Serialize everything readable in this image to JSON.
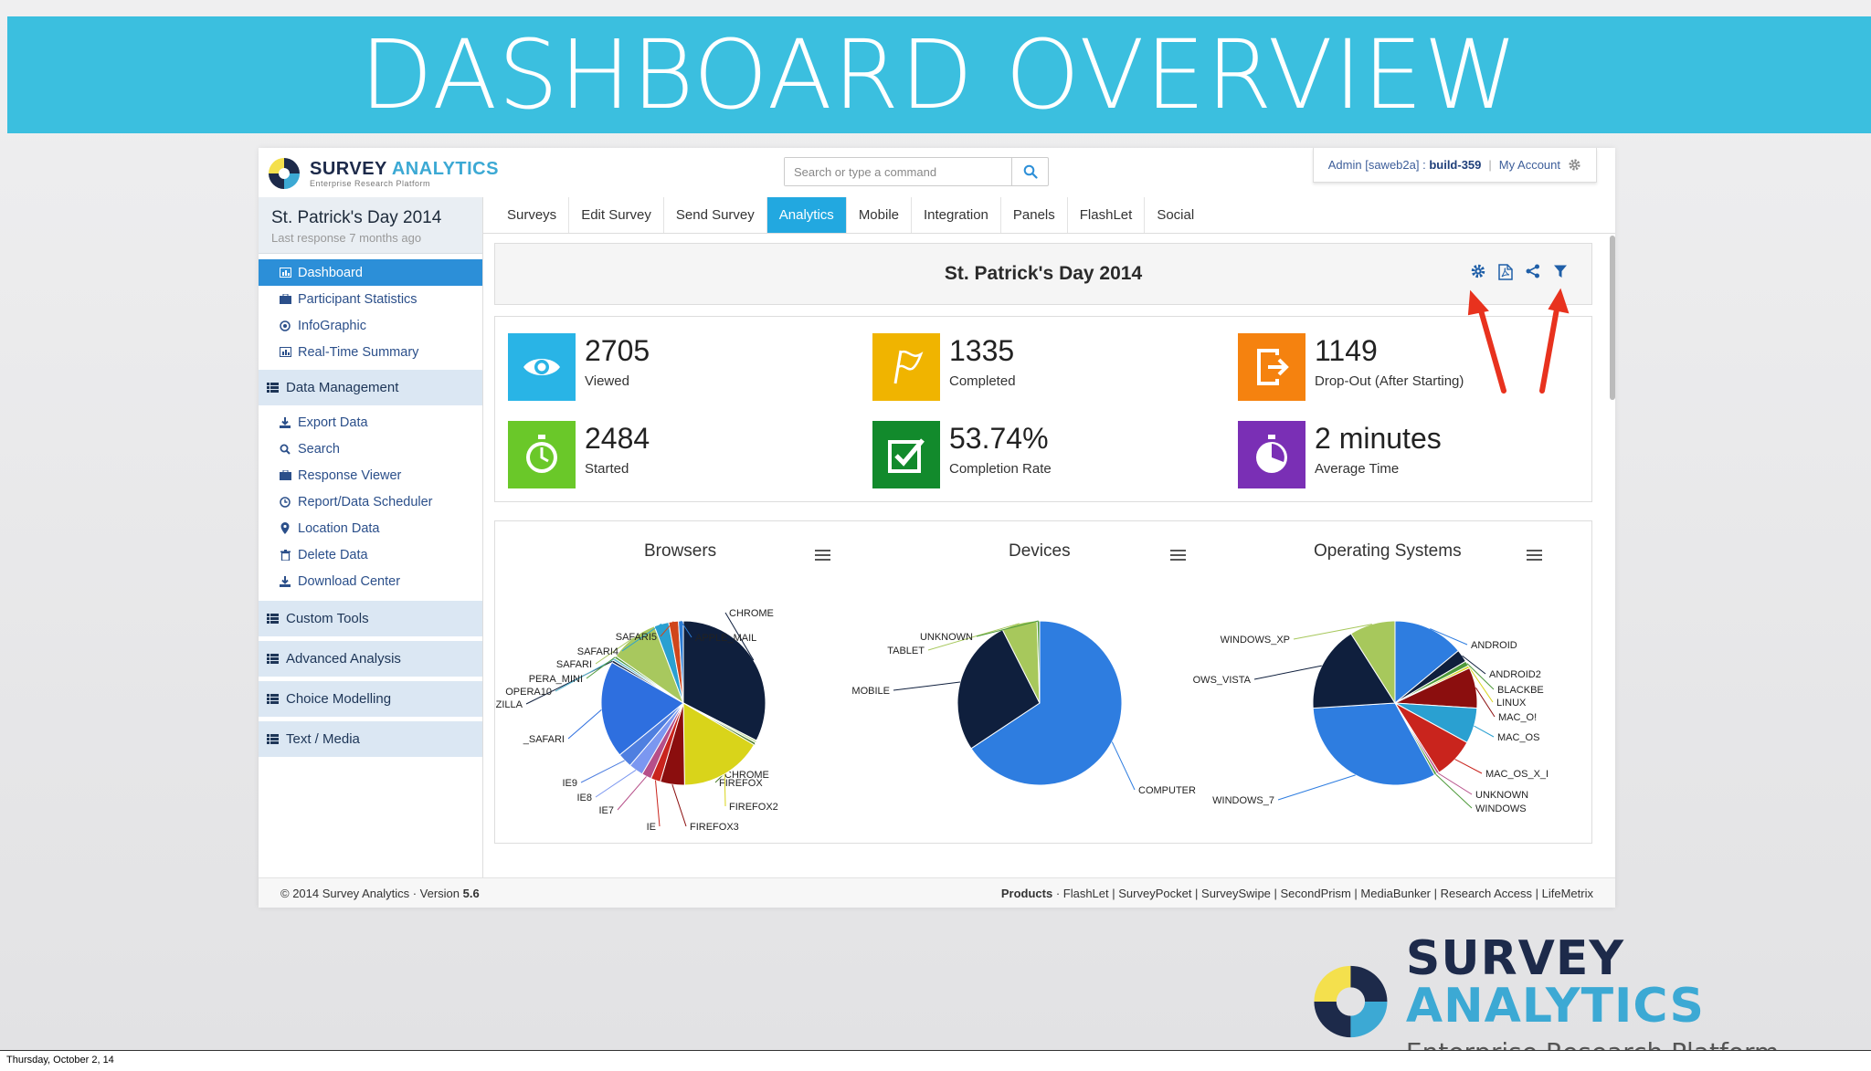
{
  "slide": {
    "title": "DASHBOARD OVERVIEW",
    "date": "Thursday, October 2, 14",
    "brand_name_1": "SURVEY",
    "brand_name_2": "ANALYTICS",
    "brand_sub": "Enterprise Research Platform"
  },
  "app": {
    "logo_name_1": "SURVEY",
    "logo_name_2": "ANALYTICS",
    "logo_sub": "Enterprise Research Platform",
    "search_placeholder": "Search or type a command",
    "account": {
      "admin_label": "Admin [saweb2a] :",
      "build": "build-359",
      "my_account": "My Account"
    }
  },
  "sidebar": {
    "project_title": "St. Patrick's Day 2014",
    "project_sub": "Last response 7 months ago",
    "items": [
      {
        "label": "Dashboard",
        "icon": "chart-icon",
        "active": true
      },
      {
        "label": "Participant Statistics",
        "icon": "briefcase-icon"
      },
      {
        "label": "InfoGraphic",
        "icon": "target-icon"
      },
      {
        "label": "Real-Time Summary",
        "icon": "chart-icon"
      }
    ],
    "data_management": "Data Management",
    "dm_items": [
      {
        "label": "Export Data",
        "icon": "download-icon"
      },
      {
        "label": "Search",
        "icon": "search-icon"
      },
      {
        "label": "Response Viewer",
        "icon": "briefcase-icon"
      },
      {
        "label": "Report/Data Scheduler",
        "icon": "clock-icon"
      },
      {
        "label": "Location Data",
        "icon": "pin-icon"
      },
      {
        "label": "Delete Data",
        "icon": "trash-icon"
      },
      {
        "label": "Download Center",
        "icon": "download-icon"
      }
    ],
    "sections": [
      "Custom Tools",
      "Advanced Analysis",
      "Choice Modelling",
      "Text / Media"
    ]
  },
  "tabs": [
    "Surveys",
    "Edit Survey",
    "Send Survey",
    "Analytics",
    "Mobile",
    "Integration",
    "Panels",
    "FlashLet",
    "Social"
  ],
  "active_tab": "Analytics",
  "panel": {
    "title": "St. Patrick's Day 2014"
  },
  "stats": [
    {
      "value": "2705",
      "label": "Viewed",
      "color": "#29b4e6",
      "icon": "eye-icon"
    },
    {
      "value": "1335",
      "label": "Completed",
      "color": "#f0b400",
      "icon": "flag-icon"
    },
    {
      "value": "1149",
      "label": "Drop-Out (After Starting)",
      "color": "#f5820f",
      "icon": "exit-icon"
    },
    {
      "value": "2484",
      "label": "Started",
      "color": "#6ac829",
      "icon": "stopwatch-icon"
    },
    {
      "value": "53.74%",
      "label": "Completion Rate",
      "color": "#128a2c",
      "icon": "checkbox-icon"
    },
    {
      "value": "2 minutes",
      "label": "Average Time",
      "color": "#7a2fb5",
      "icon": "timer-icon"
    }
  ],
  "chart_data": [
    {
      "type": "pie",
      "title": "Browsers",
      "labels": [
        "CHROME",
        "CHROME",
        "FIREFOX",
        "FIREFOX2",
        "FIREFOX3",
        "IE",
        "IE7",
        "IE8",
        "IE9",
        "_SAFARI",
        "MOZILLA",
        "OPERA10",
        "PERA_MINI",
        "SAFARI",
        "SAFARI4",
        "SAFARI5",
        "APPLE_MAIL"
      ],
      "values": [
        34,
        0.5,
        0.5,
        17,
        5,
        2,
        2,
        3,
        3,
        20,
        0.5,
        0.5,
        0.5,
        10,
        3,
        2,
        1
      ]
    },
    {
      "type": "pie",
      "title": "Devices",
      "labels": [
        "COMPUTER",
        "MOBILE",
        "TABLET",
        "UNKNOWN"
      ],
      "values": [
        66,
        27,
        7,
        0.5
      ]
    },
    {
      "type": "pie",
      "title": "Operating Systems",
      "labels": [
        "ANDROID",
        "ANDROID2",
        "BLACKBE",
        "LINUX",
        "MAC_O!",
        "MAC_OS",
        "MAC_OS_X_I",
        "UNKNOWN",
        "WINDOWS",
        "WINDOWS_7",
        "OWS_VISTA",
        "WINDOWS_XP"
      ],
      "values": [
        14,
        2.5,
        1,
        0.5,
        8,
        7,
        8,
        0.5,
        0.5,
        32,
        17,
        9
      ]
    }
  ],
  "footer": {
    "copyright": "© 2014 Survey Analytics ·  Version",
    "version": "5.6",
    "products_label": "Products",
    "products": "·  FlashLet | SurveyPocket | SurveySwipe | SecondPrism | MediaBunker | Research Access | LifeMetrix"
  },
  "colors": {
    "banner": "#3bbfdf",
    "active_tab": "#22a8e0",
    "active_nav": "#2c8fd8",
    "annotation_arrow": "#e8321e"
  }
}
